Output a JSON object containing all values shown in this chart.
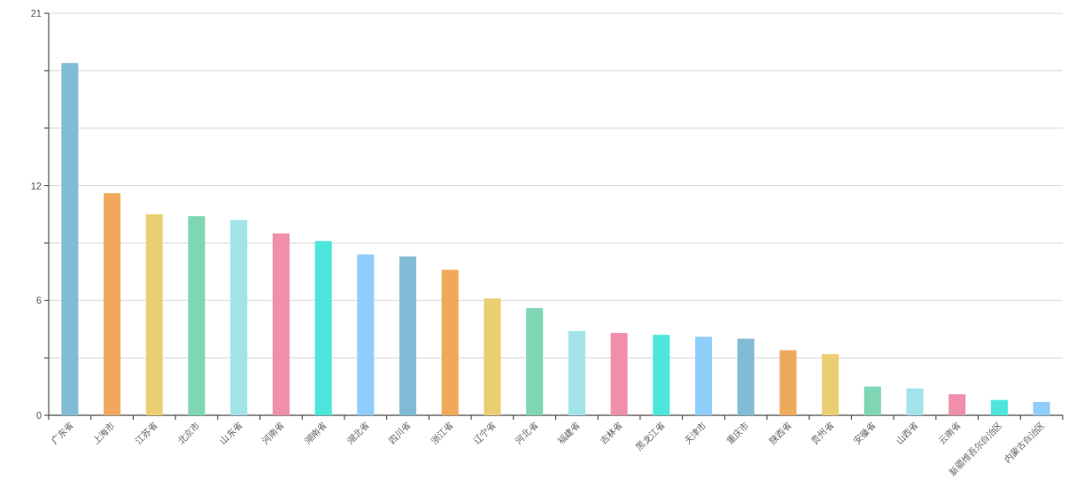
{
  "chart_data": {
    "type": "bar",
    "categories": [
      "广东省",
      "上海市",
      "江苏省",
      "北京市",
      "山东省",
      "河南省",
      "湖南省",
      "湖北省",
      "四川省",
      "浙江省",
      "辽宁省",
      "河北省",
      "福建省",
      "吉林省",
      "黑龙江省",
      "天津市",
      "重庆市",
      "陕西省",
      "贵州省",
      "安徽省",
      "山西省",
      "云南省",
      "新疆维吾尔自治区",
      "内蒙古自治区"
    ],
    "values": [
      18.4,
      11.6,
      10.5,
      10.4,
      10.2,
      9.5,
      9.1,
      8.4,
      8.3,
      7.6,
      6.1,
      5.6,
      4.4,
      4.3,
      4.2,
      4.1,
      4.0,
      3.4,
      3.2,
      1.5,
      1.4,
      1.1,
      0.8,
      0.7
    ],
    "colors": [
      "#82bbd5",
      "#f0a95c",
      "#ecce72",
      "#7ed6b5",
      "#a1e3e8",
      "#f08fab",
      "#4ce6dc",
      "#8fcefa",
      "#82bbd5",
      "#f0a95c",
      "#ecce72",
      "#7ed6b5",
      "#a1e3e8",
      "#f08fab",
      "#4ce6dc",
      "#8fcefa",
      "#82bbd5",
      "#f0a95c",
      "#ecce72",
      "#7ed6b5",
      "#a1e3e8",
      "#f08fab",
      "#4ce6dc",
      "#8fcefa"
    ],
    "ylim": [
      0,
      21
    ],
    "yticks": [
      0,
      {
        "value": 3,
        "label": null
      },
      6,
      {
        "value": 9,
        "label": null
      },
      12,
      {
        "value": 15,
        "label": null
      },
      {
        "value": 18,
        "label": null
      },
      21
    ],
    "grid": "y"
  }
}
